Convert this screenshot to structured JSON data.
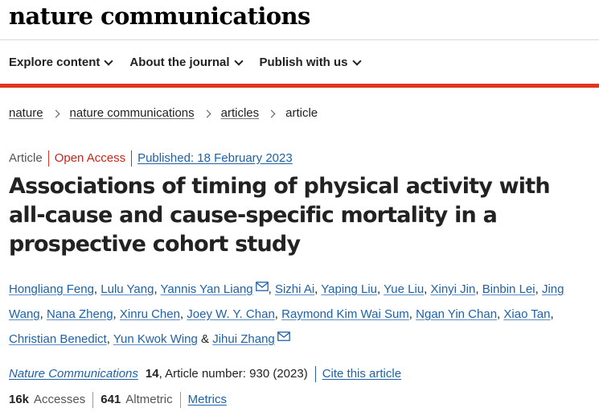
{
  "brand": {
    "name": "nature communications"
  },
  "nav": {
    "items": [
      "Explore content",
      "About the journal",
      "Publish with us"
    ]
  },
  "breadcrumb": {
    "items": [
      "nature",
      "nature communications",
      "articles"
    ],
    "current": "article"
  },
  "meta": {
    "type": "Article",
    "access": "Open Access",
    "published": "Published: 18 February 2023"
  },
  "title": "Associations of timing of physical activity with all-cause and cause-specific mortality in a prospective cohort study",
  "authors": [
    {
      "name": "Hongliang Feng"
    },
    {
      "name": "Lulu Yang"
    },
    {
      "name": "Yannis Yan Liang",
      "email": true
    },
    {
      "name": "Sizhi Ai"
    },
    {
      "name": "Yaping Liu"
    },
    {
      "name": "Yue Liu"
    },
    {
      "name": "Xinyi Jin"
    },
    {
      "name": "Binbin Lei"
    },
    {
      "name": "Jing Wang"
    },
    {
      "name": "Nana Zheng"
    },
    {
      "name": "Xinru Chen"
    },
    {
      "name": "Joey W. Y. Chan"
    },
    {
      "name": "Raymond Kim Wai Sum"
    },
    {
      "name": "Ngan Yin Chan"
    },
    {
      "name": "Xiao Tan"
    },
    {
      "name": "Christian Benedict"
    },
    {
      "name": "Yun Kwok Wing"
    },
    {
      "name": "Jihui Zhang",
      "email": true
    }
  ],
  "citation": {
    "journal": "Nature Communications",
    "volume": "14",
    "article_number": ", Article number: 930 (2023)",
    "cite_label": "Cite this article"
  },
  "metrics": {
    "accesses_value": "16k",
    "accesses_label": "Accesses",
    "altmetric_value": "641",
    "altmetric_label": "Altmetric",
    "metrics_link": "Metrics"
  },
  "colors": {
    "accent_red": "#e3341f",
    "link_blue": "#1f62a7"
  },
  "icons": {
    "nav_chevron": "chevron-down-icon",
    "breadcrumb_sep": "chevron-right-icon",
    "author_email": "envelope-icon"
  }
}
